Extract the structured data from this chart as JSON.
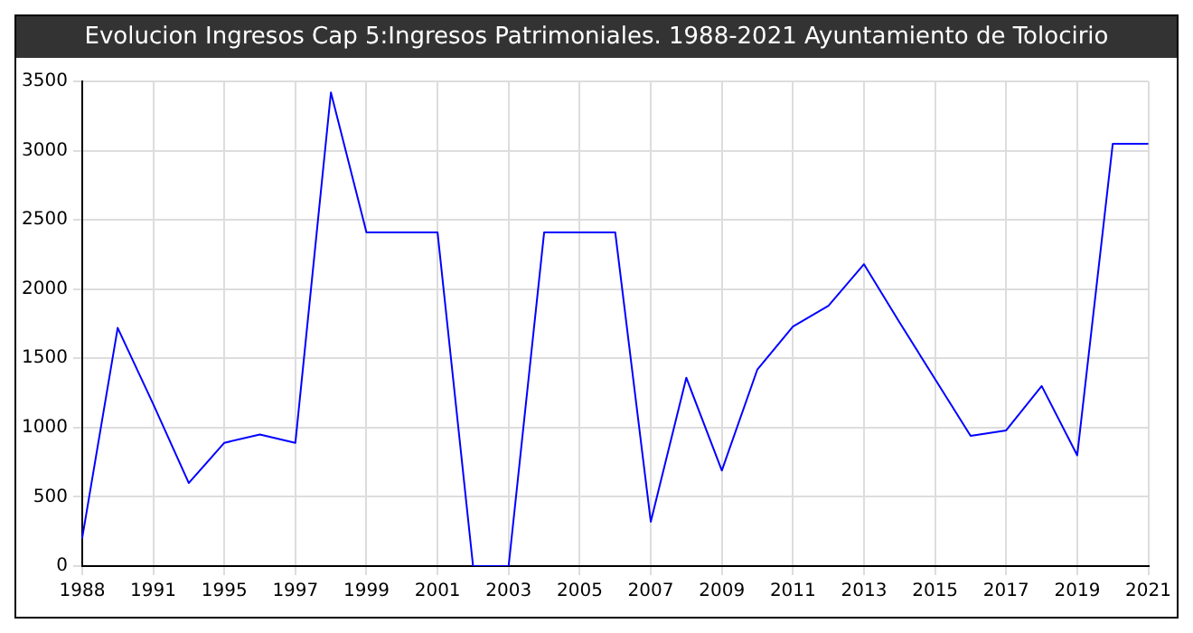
{
  "chart_data": {
    "type": "line",
    "title": "Evolucion Ingresos Cap 5:Ingresos Patrimoniales. 1988-2021 Ayuntamiento de Tolocirio",
    "categories": [
      "1988",
      null,
      "1991",
      null,
      "1995",
      null,
      "1997",
      null,
      "1999",
      null,
      "2001",
      null,
      "2003",
      null,
      "2005",
      null,
      "2007",
      null,
      "2009",
      null,
      "2011",
      null,
      "2013",
      null,
      "2015",
      null,
      "2017",
      null,
      "2019",
      null,
      "2021"
    ],
    "series": [
      {
        "color": "#0000ff",
        "values": [
          200,
          1720,
          1170,
          600,
          890,
          950,
          890,
          3420,
          2410,
          2410,
          2410,
          0,
          0,
          2410,
          2410,
          2410,
          320,
          1360,
          690,
          1420,
          1730,
          1880,
          2180,
          1760,
          1350,
          940,
          980,
          1300,
          800,
          3050,
          3050
        ]
      }
    ],
    "ylim": [
      0,
      3500
    ],
    "yticks": [
      0,
      500,
      1000,
      1500,
      2000,
      2500,
      3000,
      3500
    ],
    "grid": true,
    "legend": false,
    "marker": "none",
    "line_style": "solid"
  }
}
